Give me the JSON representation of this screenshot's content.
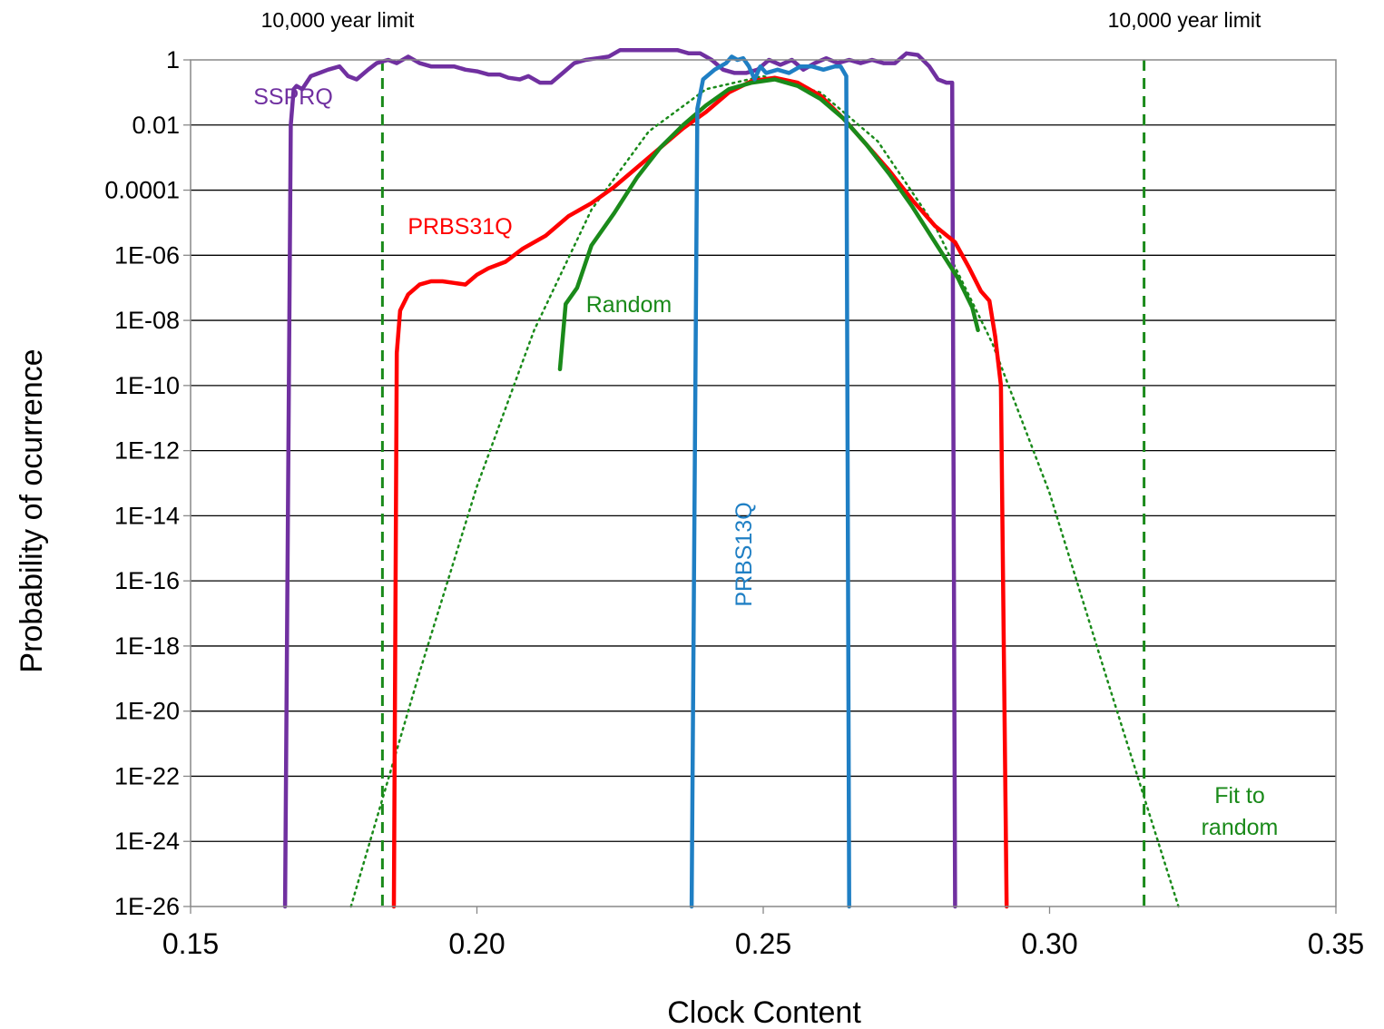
{
  "chart_data": {
    "type": "line",
    "title": "",
    "xlabel": "Clock Content",
    "ylabel": "Probability of ocurrence",
    "xlim": [
      0.15,
      0.35
    ],
    "ylim_log10": [
      -26,
      0
    ],
    "y_scale": "log",
    "grid": "horizontal",
    "x_ticks": [
      "0.15",
      "0.20",
      "0.25",
      "0.30",
      "0.35"
    ],
    "y_ticks": [
      "1",
      "0.01",
      "0.0001",
      "1E-06",
      "1E-08",
      "1E-10",
      "1E-12",
      "1E-14",
      "1E-16",
      "1E-18",
      "1E-20",
      "1E-22",
      "1E-24",
      "1E-26"
    ],
    "vlines": [
      {
        "x": 0.1835,
        "label": "10,000 year limit",
        "color": "#1a8a1a"
      },
      {
        "x": 0.3165,
        "label": "10,000 year limit",
        "color": "#1a8a1a"
      }
    ],
    "series": [
      {
        "name": "SSPRQ",
        "color": "#7030a0",
        "points": [
          [
            0.1665,
            -26
          ],
          [
            0.1675,
            -2
          ],
          [
            0.168,
            -0.9
          ],
          [
            0.1685,
            -0.8
          ],
          [
            0.1695,
            -0.9
          ],
          [
            0.171,
            -0.5
          ],
          [
            0.1725,
            -0.4
          ],
          [
            0.174,
            -0.3
          ],
          [
            0.176,
            -0.2
          ],
          [
            0.1775,
            -0.5
          ],
          [
            0.179,
            -0.6
          ],
          [
            0.181,
            -0.3
          ],
          [
            0.1825,
            -0.1
          ],
          [
            0.1845,
            0
          ],
          [
            0.186,
            -0.1
          ],
          [
            0.188,
            0.1
          ],
          [
            0.19,
            -0.1
          ],
          [
            0.192,
            -0.2
          ],
          [
            0.194,
            -0.2
          ],
          [
            0.196,
            -0.2
          ],
          [
            0.198,
            -0.3
          ],
          [
            0.2,
            -0.35
          ],
          [
            0.202,
            -0.45
          ],
          [
            0.204,
            -0.45
          ],
          [
            0.2055,
            -0.55
          ],
          [
            0.2075,
            -0.6
          ],
          [
            0.209,
            -0.5
          ],
          [
            0.211,
            -0.7
          ],
          [
            0.213,
            -0.7
          ],
          [
            0.215,
            -0.4
          ],
          [
            0.217,
            -0.1
          ],
          [
            0.219,
            0
          ],
          [
            0.221,
            0.05
          ],
          [
            0.223,
            0.1
          ],
          [
            0.225,
            0.3
          ],
          [
            0.227,
            0.3
          ],
          [
            0.229,
            0.3
          ],
          [
            0.231,
            0.3
          ],
          [
            0.233,
            0.3
          ],
          [
            0.235,
            0.3
          ],
          [
            0.237,
            0.2
          ],
          [
            0.239,
            0.2
          ],
          [
            0.241,
            0
          ],
          [
            0.243,
            -0.3
          ],
          [
            0.245,
            -0.4
          ],
          [
            0.247,
            -0.4
          ],
          [
            0.249,
            -0.3
          ],
          [
            0.251,
            0
          ],
          [
            0.253,
            -0.15
          ],
          [
            0.255,
            0
          ],
          [
            0.257,
            -0.3
          ],
          [
            0.259,
            -0.1
          ],
          [
            0.261,
            0.05
          ],
          [
            0.263,
            -0.1
          ],
          [
            0.265,
            0
          ],
          [
            0.267,
            -0.1
          ],
          [
            0.269,
            0
          ],
          [
            0.271,
            -0.1
          ],
          [
            0.273,
            -0.1
          ],
          [
            0.275,
            0.2
          ],
          [
            0.277,
            0.15
          ],
          [
            0.279,
            -0.2
          ],
          [
            0.2805,
            -0.6
          ],
          [
            0.282,
            -0.7
          ],
          [
            0.283,
            -0.7
          ],
          [
            0.2835,
            -26
          ]
        ]
      },
      {
        "name": "PRBS31Q",
        "color": "#ff0000",
        "points": [
          [
            0.1855,
            -26
          ],
          [
            0.186,
            -9
          ],
          [
            0.1866,
            -7.7
          ],
          [
            0.188,
            -7.2
          ],
          [
            0.19,
            -6.9
          ],
          [
            0.192,
            -6.8
          ],
          [
            0.194,
            -6.8
          ],
          [
            0.196,
            -6.85
          ],
          [
            0.198,
            -6.9
          ],
          [
            0.2,
            -6.6
          ],
          [
            0.202,
            -6.4
          ],
          [
            0.205,
            -6.2
          ],
          [
            0.208,
            -5.8
          ],
          [
            0.212,
            -5.4
          ],
          [
            0.216,
            -4.8
          ],
          [
            0.22,
            -4.4
          ],
          [
            0.224,
            -3.9
          ],
          [
            0.228,
            -3.3
          ],
          [
            0.232,
            -2.7
          ],
          [
            0.236,
            -2.1
          ],
          [
            0.24,
            -1.6
          ],
          [
            0.244,
            -1.0
          ],
          [
            0.248,
            -0.65
          ],
          [
            0.252,
            -0.55
          ],
          [
            0.256,
            -0.7
          ],
          [
            0.26,
            -1.1
          ],
          [
            0.264,
            -1.8
          ],
          [
            0.268,
            -2.6
          ],
          [
            0.272,
            -3.4
          ],
          [
            0.276,
            -4.3
          ],
          [
            0.28,
            -5.1
          ],
          [
            0.2835,
            -5.6
          ],
          [
            0.286,
            -6.4
          ],
          [
            0.288,
            -7.1
          ],
          [
            0.2895,
            -7.4
          ],
          [
            0.2905,
            -8.5
          ],
          [
            0.2915,
            -10
          ],
          [
            0.2925,
            -26
          ]
        ]
      },
      {
        "name": "PRBS13Q",
        "color": "#1f7fc4",
        "points": [
          [
            0.2375,
            -26
          ],
          [
            0.2385,
            -1.5
          ],
          [
            0.2395,
            -0.6
          ],
          [
            0.2415,
            -0.3
          ],
          [
            0.2435,
            -0.1
          ],
          [
            0.2445,
            0.1
          ],
          [
            0.2455,
            0
          ],
          [
            0.2465,
            0.05
          ],
          [
            0.2475,
            -0.2
          ],
          [
            0.2485,
            -0.6
          ],
          [
            0.2495,
            -0.2
          ],
          [
            0.2505,
            -0.4
          ],
          [
            0.2525,
            -0.3
          ],
          [
            0.2545,
            -0.4
          ],
          [
            0.2565,
            -0.2
          ],
          [
            0.2585,
            -0.2
          ],
          [
            0.2605,
            -0.3
          ],
          [
            0.2625,
            -0.2
          ],
          [
            0.2635,
            -0.2
          ],
          [
            0.2645,
            -0.5
          ],
          [
            0.265,
            -26
          ]
        ]
      },
      {
        "name": "Random",
        "color": "#1a8a1a",
        "points": [
          [
            0.2145,
            -9.5
          ],
          [
            0.2155,
            -7.5
          ],
          [
            0.2175,
            -7
          ],
          [
            0.22,
            -5.7
          ],
          [
            0.224,
            -4.7
          ],
          [
            0.228,
            -3.6
          ],
          [
            0.232,
            -2.7
          ],
          [
            0.236,
            -2
          ],
          [
            0.24,
            -1.4
          ],
          [
            0.244,
            -0.9
          ],
          [
            0.248,
            -0.7
          ],
          [
            0.252,
            -0.6
          ],
          [
            0.256,
            -0.8
          ],
          [
            0.26,
            -1.2
          ],
          [
            0.264,
            -1.8
          ],
          [
            0.268,
            -2.6
          ],
          [
            0.272,
            -3.5
          ],
          [
            0.276,
            -4.5
          ],
          [
            0.28,
            -5.6
          ],
          [
            0.284,
            -6.7
          ],
          [
            0.2865,
            -7.6
          ],
          [
            0.2875,
            -8.3
          ]
        ]
      },
      {
        "name": "Fit to random",
        "color": "#1a8a1a",
        "style": "dotted",
        "points": [
          [
            0.178,
            -26
          ],
          [
            0.19,
            -18.8
          ],
          [
            0.2,
            -13.1
          ],
          [
            0.21,
            -8.3
          ],
          [
            0.22,
            -4.6
          ],
          [
            0.23,
            -2.2
          ],
          [
            0.24,
            -0.9
          ],
          [
            0.25,
            -0.5
          ],
          [
            0.26,
            -1.0
          ],
          [
            0.27,
            -2.5
          ],
          [
            0.28,
            -5.1
          ],
          [
            0.29,
            -8.7
          ],
          [
            0.3,
            -13.3
          ],
          [
            0.31,
            -19
          ],
          [
            0.3225,
            -26
          ]
        ]
      }
    ],
    "annotations": [
      {
        "text": "SSPRQ",
        "color": "#7030a0"
      },
      {
        "text": "PRBS31Q",
        "color": "#ff0000"
      },
      {
        "text": "Random",
        "color": "#1a8a1a"
      },
      {
        "text": "PRBS13Q",
        "color": "#1f7fc4",
        "rotated": true
      },
      {
        "text": "Fit to",
        "color": "#1a8a1a"
      },
      {
        "text": "random",
        "color": "#1a8a1a"
      }
    ]
  }
}
